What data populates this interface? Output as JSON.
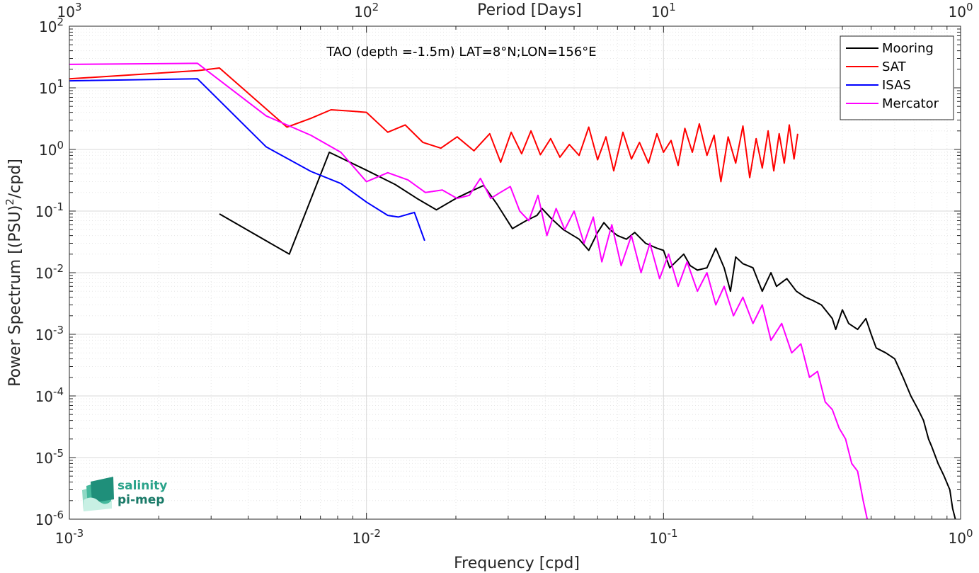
{
  "chart_data": {
    "type": "line",
    "title": "",
    "annotation": "TAO (depth =-1.5m) LAT=8°N;LON=156°E",
    "xlabel": "Frequency [cpd]",
    "ylabel": "Power Spectrum [(PSU)²/cpd]",
    "top_xlabel": "Period [Days]",
    "xscale": "log",
    "yscale": "log",
    "xlim": [
      0.001,
      1
    ],
    "ylim": [
      1e-06,
      100
    ],
    "top_xlim": [
      1000,
      1
    ],
    "grid": true,
    "legend_position": "top-right",
    "x_ticks": [
      "10-3",
      "10-2",
      "10-1",
      "100"
    ],
    "top_ticks": [
      "103",
      "102",
      "101",
      "100"
    ],
    "y_ticks": [
      "10-6",
      "10-5",
      "10-4",
      "10-3",
      "10-2",
      "10-1",
      "100",
      "101",
      "102"
    ],
    "series": [
      {
        "name": "Mooring",
        "color": "#000000",
        "x": [
          0.0032,
          0.0055,
          0.0075,
          0.01,
          0.0125,
          0.0148,
          0.0172,
          0.02,
          0.022,
          0.0248,
          0.0275,
          0.031,
          0.0345,
          0.0375,
          0.039,
          0.042,
          0.046,
          0.052,
          0.056,
          0.06,
          0.063,
          0.066,
          0.07,
          0.075,
          0.08,
          0.087,
          0.095,
          0.1,
          0.105,
          0.11,
          0.117,
          0.123,
          0.13,
          0.14,
          0.15,
          0.16,
          0.168,
          0.175,
          0.185,
          0.2,
          0.215,
          0.23,
          0.24,
          0.26,
          0.28,
          0.3,
          0.32,
          0.34,
          0.37,
          0.38,
          0.4,
          0.42,
          0.45,
          0.48,
          0.5,
          0.52,
          0.56,
          0.6,
          0.64,
          0.68,
          0.72,
          0.75,
          0.78,
          0.8,
          0.84,
          0.88,
          0.92,
          0.94,
          0.96
        ],
        "values": [
          0.09,
          0.02,
          0.9,
          0.46,
          0.27,
          0.16,
          0.105,
          0.16,
          0.2,
          0.26,
          0.13,
          0.052,
          0.07,
          0.085,
          0.11,
          0.075,
          0.05,
          0.035,
          0.023,
          0.045,
          0.065,
          0.05,
          0.04,
          0.035,
          0.045,
          0.03,
          0.025,
          0.023,
          0.012,
          0.015,
          0.02,
          0.013,
          0.011,
          0.012,
          0.025,
          0.012,
          0.005,
          0.018,
          0.014,
          0.012,
          0.005,
          0.01,
          0.006,
          0.008,
          0.005,
          0.004,
          0.0035,
          0.003,
          0.0018,
          0.0012,
          0.0025,
          0.0015,
          0.0012,
          0.0018,
          0.001,
          0.0006,
          0.0005,
          0.0004,
          0.0002,
          0.0001,
          6e-05,
          4e-05,
          2e-05,
          1.5e-05,
          8e-06,
          5e-06,
          3e-06,
          1.5e-06,
          1e-06
        ]
      },
      {
        "name": "SAT",
        "color": "#ff0000",
        "x": [
          0.001,
          0.0027,
          0.0032,
          0.0054,
          0.0065,
          0.0076,
          0.0088,
          0.01,
          0.0118,
          0.0135,
          0.0155,
          0.0178,
          0.0202,
          0.023,
          0.026,
          0.0283,
          0.0307,
          0.0333,
          0.0358,
          0.0385,
          0.0417,
          0.0448,
          0.0482,
          0.052,
          0.056,
          0.06,
          0.064,
          0.068,
          0.073,
          0.078,
          0.083,
          0.089,
          0.095,
          0.1,
          0.106,
          0.112,
          0.118,
          0.125,
          0.132,
          0.14,
          0.148,
          0.156,
          0.165,
          0.175,
          0.185,
          0.195,
          0.205,
          0.215,
          0.225,
          0.235,
          0.245,
          0.255,
          0.265,
          0.275,
          0.283
        ],
        "values": [
          14,
          19,
          21,
          2.3,
          3.2,
          4.4,
          4.2,
          4.0,
          1.9,
          2.5,
          1.3,
          1.05,
          1.6,
          0.95,
          1.8,
          0.62,
          1.9,
          0.85,
          2.0,
          0.82,
          1.5,
          0.75,
          1.2,
          0.8,
          2.3,
          0.68,
          1.6,
          0.45,
          1.9,
          0.7,
          1.3,
          0.6,
          1.8,
          0.9,
          1.4,
          0.55,
          2.2,
          0.9,
          2.6,
          0.8,
          1.7,
          0.3,
          1.6,
          0.6,
          2.4,
          0.35,
          1.5,
          0.5,
          2.0,
          0.45,
          1.8,
          0.6,
          2.5,
          0.7,
          1.8
        ]
      },
      {
        "name": "ISAS",
        "color": "#0000ff",
        "x": [
          0.001,
          0.0027,
          0.0046,
          0.0065,
          0.0082,
          0.01,
          0.0118,
          0.0128,
          0.0145,
          0.0157
        ],
        "values": [
          13,
          14,
          1.1,
          0.44,
          0.28,
          0.14,
          0.085,
          0.08,
          0.095,
          0.033
        ]
      },
      {
        "name": "Mercator",
        "color": "#ff00ff",
        "x": [
          0.001,
          0.0027,
          0.0046,
          0.0065,
          0.0082,
          0.01,
          0.0118,
          0.0138,
          0.0158,
          0.018,
          0.0202,
          0.0222,
          0.0242,
          0.0262,
          0.0282,
          0.0305,
          0.0328,
          0.0352,
          0.0378,
          0.0405,
          0.0435,
          0.0465,
          0.05,
          0.054,
          0.058,
          0.062,
          0.067,
          0.072,
          0.078,
          0.084,
          0.09,
          0.097,
          0.104,
          0.112,
          0.12,
          0.13,
          0.14,
          0.15,
          0.16,
          0.172,
          0.185,
          0.2,
          0.215,
          0.23,
          0.25,
          0.27,
          0.29,
          0.31,
          0.33,
          0.35,
          0.37,
          0.39,
          0.41,
          0.43,
          0.45,
          0.47,
          0.485
        ],
        "values": [
          24,
          25,
          3.5,
          1.7,
          0.9,
          0.3,
          0.42,
          0.32,
          0.2,
          0.22,
          0.16,
          0.18,
          0.34,
          0.16,
          0.2,
          0.25,
          0.1,
          0.07,
          0.18,
          0.04,
          0.11,
          0.05,
          0.1,
          0.03,
          0.08,
          0.015,
          0.06,
          0.013,
          0.04,
          0.01,
          0.03,
          0.008,
          0.02,
          0.006,
          0.015,
          0.005,
          0.01,
          0.003,
          0.006,
          0.002,
          0.004,
          0.0015,
          0.003,
          0.0008,
          0.0015,
          0.0005,
          0.0007,
          0.0002,
          0.00025,
          8e-05,
          6e-05,
          3e-05,
          2e-05,
          8e-06,
          6e-06,
          2e-06,
          1e-06
        ]
      }
    ]
  },
  "logo": {
    "line1": "salinity",
    "line2": "pi-mep"
  }
}
